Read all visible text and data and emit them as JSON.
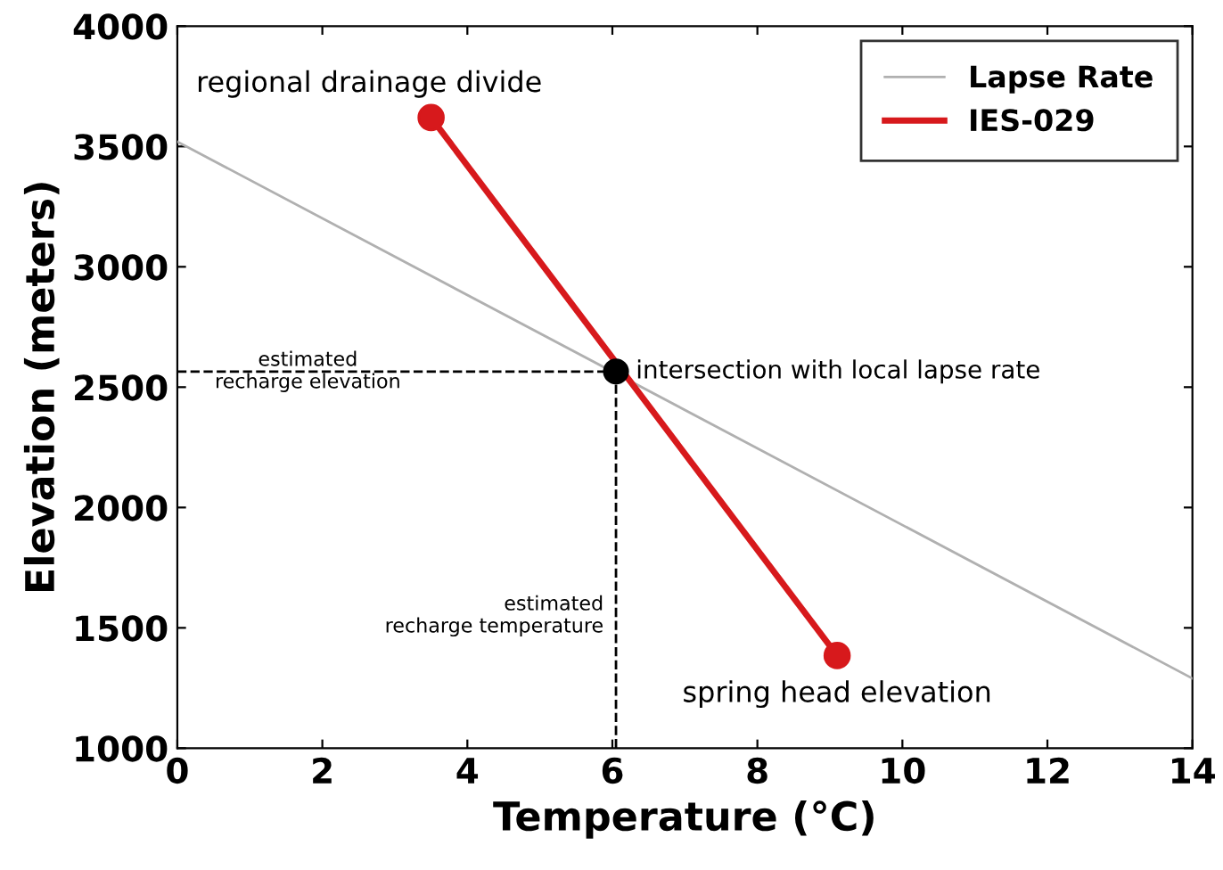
{
  "chart_data": {
    "type": "line",
    "xlabel": "Temperature (°C)",
    "ylabel": "Elevation (meters)",
    "xlim": [
      0,
      14
    ],
    "xticks": [
      0,
      2,
      4,
      6,
      8,
      10,
      12,
      14
    ],
    "ylim": [
      1000,
      4000
    ],
    "yticks": [
      1000,
      1500,
      2000,
      2500,
      3000,
      3500,
      4000
    ],
    "grid": false,
    "legend": "top right",
    "series": [
      {
        "name": "Lapse Rate",
        "color": "#b0b0b0",
        "x": [
          0,
          14
        ],
        "values": [
          3520,
          1290
        ],
        "marker": "none",
        "line_style": "solid"
      },
      {
        "name": "IES-029",
        "color": "#d7191c",
        "x": [
          3.5,
          9.1
        ],
        "values": [
          3620,
          1385
        ],
        "marker": "circle",
        "line_style": "solid"
      },
      {
        "color": "#000000",
        "x": [
          0,
          6.05
        ],
        "values": [
          2565,
          2565
        ],
        "marker": "none",
        "line_style": "dashed"
      },
      {
        "color": "#000000",
        "x": [
          6.05,
          6.05
        ],
        "values": [
          1000,
          2565
        ],
        "marker": "none",
        "line_style": "dashed"
      },
      {
        "type": "scatter",
        "color": "#000000",
        "x": [
          6.05
        ],
        "values": [
          2565
        ],
        "marker": "circle"
      }
    ],
    "annotations": [
      {
        "text": "regional drainage divide",
        "x": 3.5,
        "y": 3620
      },
      {
        "text": "intersection with local lapse rate",
        "x": 6.05,
        "y": 2565
      },
      {
        "text": "spring head elevation",
        "x": 9.1,
        "y": 1385
      },
      {
        "text": "estimated\nrecharge elevation",
        "x": 1.8,
        "y": 2565
      },
      {
        "text": "estimated\nrecharge temperature",
        "x": 6.05,
        "y": 1550
      }
    ]
  }
}
